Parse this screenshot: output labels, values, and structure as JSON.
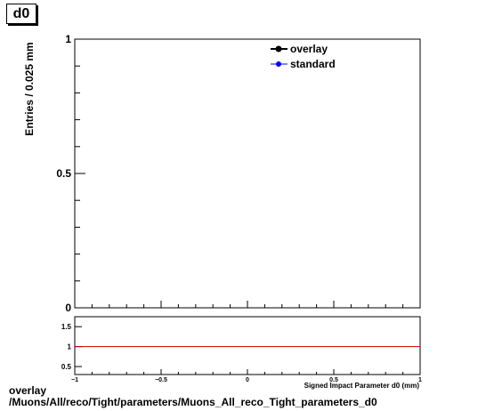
{
  "title": "d0",
  "footer": {
    "line1": "overlay",
    "line2": "/Muons/All/reco/Tight/parameters/Muons_All_reco_Tight_parameters_d0"
  },
  "chart_data": [
    {
      "type": "line",
      "ylabel": "Entries / 0.025 mm",
      "xlim": [
        -1,
        1
      ],
      "ylim": [
        0,
        1
      ],
      "y_ticks": [
        0,
        0.5,
        1
      ],
      "y_tick_labels": [
        "0",
        "0.5",
        "1"
      ],
      "series": [
        {
          "name": "overlay",
          "values": [],
          "color": "#000000"
        },
        {
          "name": "standard",
          "values": [],
          "color": "#0000ff"
        }
      ],
      "legend": "top-right"
    },
    {
      "type": "line",
      "xlabel": "Signed Impact Parameter d0 (mm)",
      "xlim": [
        -1,
        1
      ],
      "ylim": [
        0.3,
        1.75
      ],
      "x_ticks": [
        -1,
        -0.5,
        0,
        0.5,
        1
      ],
      "x_tick_labels": [
        "−1",
        "−0.5",
        "0",
        "0.5",
        "1"
      ],
      "y_ticks": [
        0.5,
        1,
        1.5
      ],
      "y_tick_labels": [
        "0.5",
        "1",
        "1.5"
      ],
      "reference_line": {
        "y": 1,
        "color": "#cc0000"
      }
    }
  ]
}
